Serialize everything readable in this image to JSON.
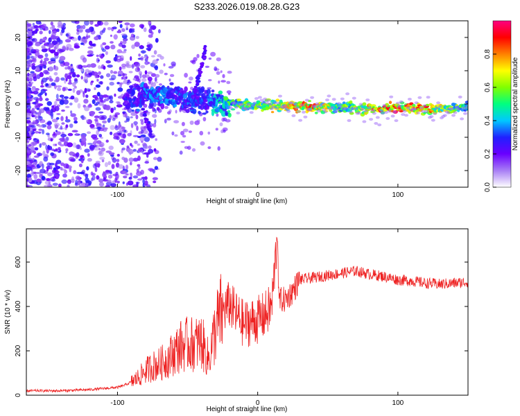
{
  "title": "S233.2026.019.08.28.G23",
  "chart_data": [
    {
      "type": "heatmap",
      "name": "spectrogram",
      "xlabel": "Height of straight line (km)",
      "ylabel": "Frequency (Hz)",
      "xlim": [
        -165,
        150
      ],
      "ylim": [
        -25,
        25
      ],
      "xticks": [
        -100,
        0,
        100
      ],
      "yticks": [
        -20,
        -10,
        0,
        10,
        20
      ],
      "colorbar": {
        "label": "Normalized spectral amplitude",
        "range": [
          0,
          1
        ],
        "ticks": [
          0.0,
          0.2,
          0.4,
          0.6,
          0.8
        ],
        "colors": [
          "#ffffff",
          "#a87ef5",
          "#6a00ff",
          "#2020ff",
          "#00c8ff",
          "#00ff80",
          "#80ff00",
          "#ffff00",
          "#ff8000",
          "#ff0000",
          "#ff0080"
        ]
      },
      "ridge": [
        {
          "x": -95,
          "y": 1.0,
          "amp": 0.25
        },
        {
          "x": -80,
          "y": 3.0,
          "amp": 0.35
        },
        {
          "x": -60,
          "y": 2.0,
          "amp": 0.35
        },
        {
          "x": -40,
          "y": 1.0,
          "amp": 0.3
        },
        {
          "x": -20,
          "y": 0.0,
          "amp": 0.55
        },
        {
          "x": 0,
          "y": -0.5,
          "amp": 0.65
        },
        {
          "x": 15,
          "y": -0.5,
          "amp": 0.7
        },
        {
          "x": 40,
          "y": -1.0,
          "amp": 0.85
        },
        {
          "x": 60,
          "y": -1.0,
          "amp": 0.55
        },
        {
          "x": 85,
          "y": -1.5,
          "amp": 0.8
        },
        {
          "x": 100,
          "y": -1.0,
          "amp": 0.85
        },
        {
          "x": 120,
          "y": -1.5,
          "amp": 0.8
        },
        {
          "x": 150,
          "y": -1.0,
          "amp": 0.5
        }
      ]
    },
    {
      "type": "line",
      "name": "snr",
      "xlabel": "Height of straight line (km)",
      "ylabel": "SNR (10 * v/v)",
      "xlim": [
        -165,
        150
      ],
      "ylim": [
        0,
        750
      ],
      "xticks": [
        -100,
        0,
        100
      ],
      "yticks": [
        0,
        200,
        400,
        600
      ],
      "color": "#ee2222",
      "series": [
        {
          "name": "SNR",
          "x": [
            -165,
            -140,
            -120,
            -110,
            -100,
            -95,
            -90,
            -85,
            -80,
            -75,
            -70,
            -65,
            -60,
            -55,
            -50,
            -45,
            -40,
            -35,
            -30,
            -25,
            -20,
            -15,
            -10,
            -5,
            0,
            5,
            10,
            14,
            15,
            20,
            25,
            30,
            40,
            50,
            60,
            70,
            80,
            90,
            100,
            110,
            120,
            130,
            140,
            150
          ],
          "y": [
            20,
            20,
            25,
            30,
            35,
            45,
            60,
            80,
            110,
            130,
            140,
            160,
            190,
            220,
            230,
            230,
            240,
            160,
            300,
            380,
            410,
            360,
            320,
            330,
            340,
            360,
            400,
            720,
            430,
            430,
            470,
            520,
            530,
            540,
            550,
            560,
            545,
            535,
            520,
            515,
            505,
            500,
            505,
            510
          ]
        }
      ]
    }
  ]
}
